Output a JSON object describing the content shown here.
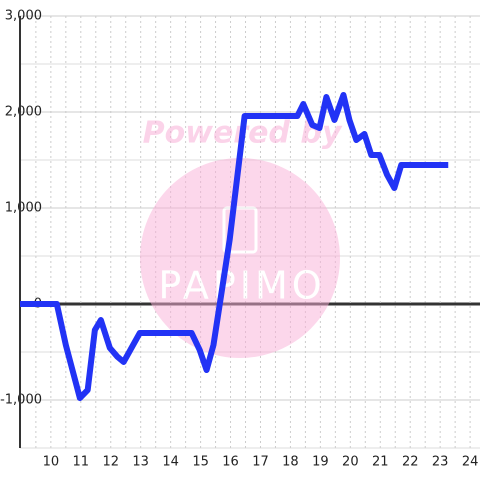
{
  "chart_data": {
    "type": "line",
    "watermark": {
      "line1": "Powered by",
      "line2": "PAPIMO"
    },
    "x": [
      8.97,
      10.2,
      10.5,
      10.97,
      11.23,
      11.47,
      11.67,
      11.97,
      12.23,
      12.43,
      12.97,
      14.7,
      14.97,
      15.2,
      15.43,
      15.97,
      16.47,
      18.23,
      18.43,
      18.73,
      18.97,
      19.2,
      19.47,
      19.77,
      19.97,
      20.2,
      20.47,
      20.7,
      20.97,
      21.23,
      21.47,
      21.7,
      23.27
    ],
    "series": [
      {
        "color": "#2233f5",
        "values": [
          0,
          0,
          -427,
          -980,
          -896,
          -271,
          -167,
          -458,
          -552,
          -604,
          -302,
          -302,
          -479,
          -688,
          -427,
          667,
          1958,
          1958,
          2083,
          1865,
          1833,
          2156,
          1917,
          2177,
          1917,
          1708,
          1771,
          1552,
          1552,
          1344,
          1208,
          1448,
          1448
        ]
      }
    ],
    "xlim": [
      8.97,
      24.33
    ],
    "ylim": [
      -1500,
      3000
    ],
    "xticks": [
      10,
      11,
      12,
      13,
      14,
      15,
      16,
      17,
      18,
      19,
      20,
      21,
      22,
      23,
      24
    ],
    "x_minor_ticks": [
      9.5,
      10.5,
      11.5,
      12.5,
      13.5,
      14.5,
      15.5,
      16.5,
      17.5,
      18.5,
      19.5,
      20.5,
      21.5,
      22.5,
      23.5
    ],
    "yticks": [
      {
        "value": -1000,
        "label": "-1,000"
      },
      0,
      {
        "value": 1000,
        "label": "1,000"
      },
      {
        "value": 2000,
        "label": "2,000"
      },
      {
        "value": 3000,
        "label": "3,000"
      }
    ],
    "y_minor_ticks": [
      -1500,
      -500,
      500,
      1500,
      2500
    ],
    "grid": true
  }
}
